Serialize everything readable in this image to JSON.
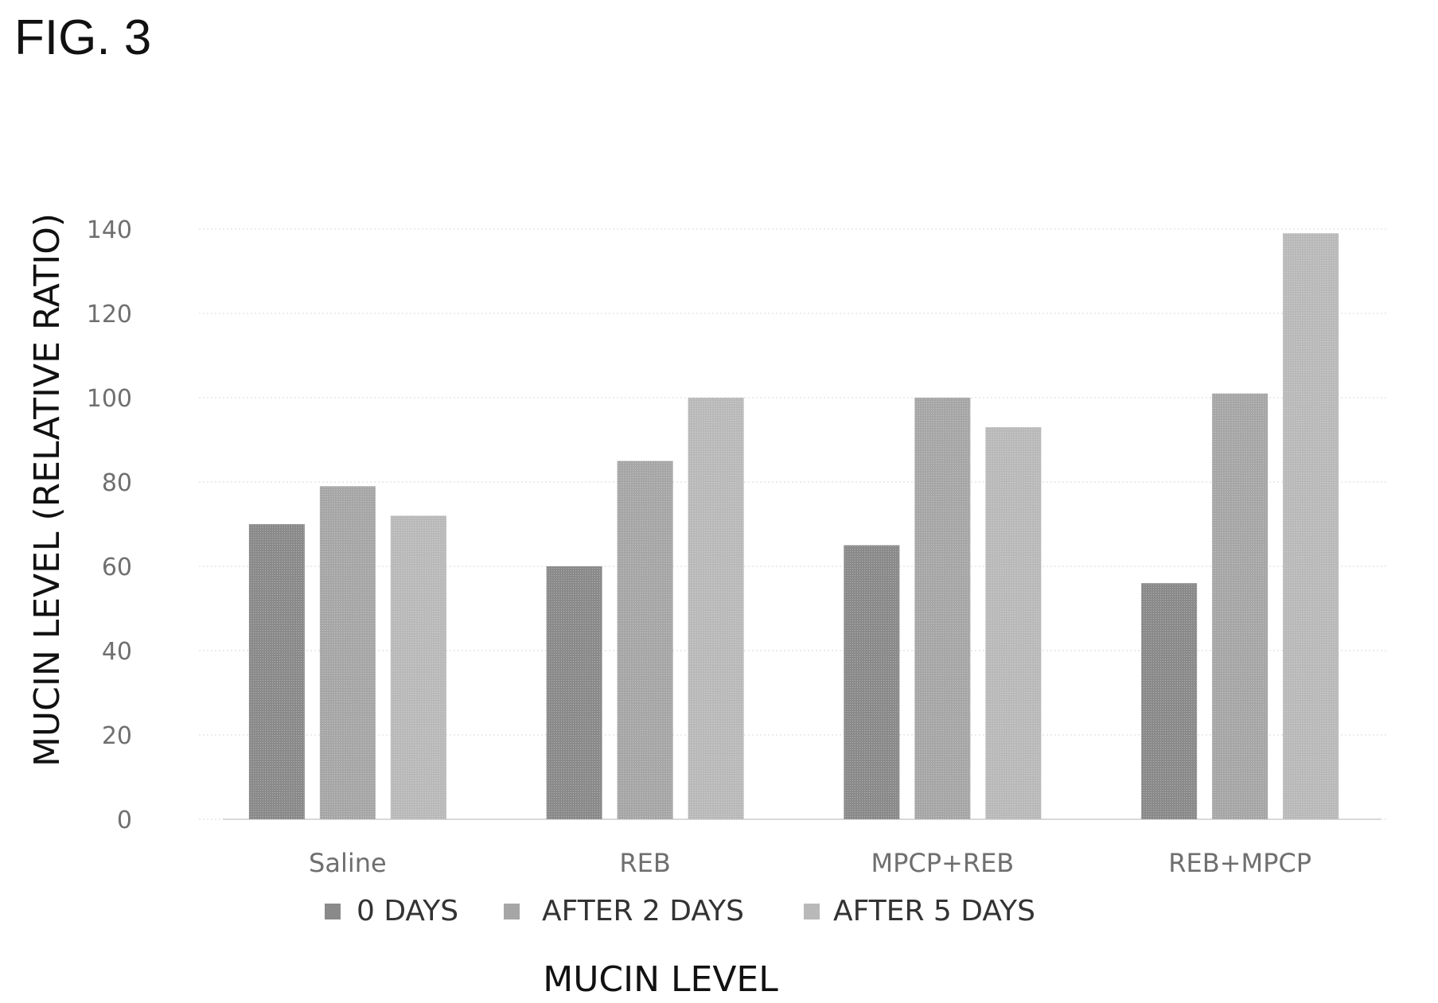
{
  "figure": {
    "label": "FIG. 3"
  },
  "chart_data": {
    "type": "bar",
    "categories": [
      "Saline",
      "REB",
      "MPCP+REB",
      "REB+MPCP"
    ],
    "series": [
      {
        "name": "0 DAYS",
        "values": [
          70,
          60,
          65,
          56
        ],
        "color": "#8a8a8a"
      },
      {
        "name": "AFTER 2 DAYS",
        "values": [
          79,
          85,
          100,
          101
        ],
        "color": "#a6a6a6"
      },
      {
        "name": "AFTER 5 DAYS",
        "values": [
          72,
          100,
          93,
          139
        ],
        "color": "#b9b9b9"
      }
    ],
    "title": "",
    "xlabel": "MUCIN LEVEL",
    "ylabel": "MUCIN LEVEL (RELATIVE RATIO)",
    "ylim": [
      0,
      140
    ],
    "yticks": [
      0,
      20,
      40,
      60,
      80,
      100,
      120,
      140
    ],
    "grid": true,
    "legend_position": "bottom"
  }
}
